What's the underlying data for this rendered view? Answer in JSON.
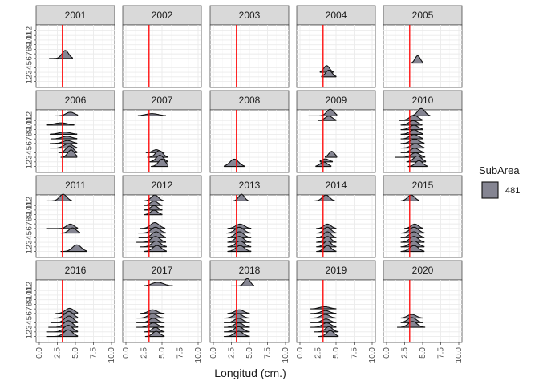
{
  "chart_data": {
    "type": "ridgeline",
    "xlabel": "Longitud (cm.)",
    "xlim": [
      0,
      10
    ],
    "x_ticks": [
      "0.0",
      "2.5",
      "5.0",
      "7.5",
      "10.0"
    ],
    "y_ticks": [
      "1",
      "2",
      "3",
      "4",
      "5",
      "6",
      "7",
      "8",
      "9",
      "10",
      "11",
      "12"
    ],
    "reference_line_x": 3.2,
    "reference_line_color": "#ff0000",
    "fill_color": "#858592",
    "legend": {
      "title": "SubArea",
      "items": [
        {
          "label": "481",
          "color": "#858592"
        }
      ]
    },
    "panels": [
      {
        "year": "2001",
        "ridges": [
          {
            "month": 6,
            "center": 3.6,
            "spread": 0.45,
            "min": 1.4,
            "max": 4.6,
            "height": 1.1
          }
        ]
      },
      {
        "year": "2002",
        "ridges": []
      },
      {
        "year": "2003",
        "ridges": []
      },
      {
        "year": "2004",
        "ridges": [
          {
            "month": 2,
            "center": 4.0,
            "spread": 0.45,
            "min": 3.0,
            "max": 5.0,
            "height": 0.9
          },
          {
            "month": 3,
            "center": 3.7,
            "spread": 0.4,
            "min": 2.8,
            "max": 4.6,
            "height": 0.9
          }
        ]
      },
      {
        "year": "2005",
        "ridges": [
          {
            "month": 5,
            "center": 4.3,
            "spread": 0.35,
            "min": 3.5,
            "max": 5.0,
            "height": 1.0
          }
        ]
      },
      {
        "year": "2006",
        "ridges": [
          {
            "month": 3,
            "center": 4.4,
            "spread": 0.45,
            "min": 3.0,
            "max": 5.2,
            "height": 1.0
          },
          {
            "month": 4,
            "center": 4.2,
            "spread": 0.5,
            "min": 2.7,
            "max": 5.2,
            "height": 0.9
          },
          {
            "month": 5,
            "center": 4.0,
            "spread": 0.6,
            "min": 1.5,
            "max": 5.2,
            "height": 0.6
          },
          {
            "month": 6,
            "center": 3.9,
            "spread": 0.65,
            "min": 1.5,
            "max": 5.2,
            "height": 0.4
          },
          {
            "month": 7,
            "center": 3.8,
            "spread": 0.7,
            "min": 1.6,
            "max": 5.2,
            "height": 0.35
          },
          {
            "month": 8,
            "center": 3.5,
            "spread": 0.8,
            "min": 1.5,
            "max": 5.2,
            "height": 0.3
          },
          {
            "month": 10,
            "center": 3.0,
            "spread": 0.9,
            "min": 1.0,
            "max": 4.8,
            "height": 0.3
          },
          {
            "month": 12,
            "center": 4.3,
            "spread": 0.6,
            "min": 2.2,
            "max": 5.3,
            "height": 0.5
          }
        ]
      },
      {
        "year": "2007",
        "ridges": [
          {
            "month": 1,
            "center": 5.0,
            "spread": 0.5,
            "min": 3.5,
            "max": 5.8,
            "height": 1.0
          },
          {
            "month": 2,
            "center": 4.7,
            "spread": 0.5,
            "min": 3.3,
            "max": 5.8,
            "height": 0.9
          },
          {
            "month": 3,
            "center": 4.6,
            "spread": 0.5,
            "min": 3.0,
            "max": 5.8,
            "height": 0.9
          },
          {
            "month": 4,
            "center": 4.2,
            "spread": 0.5,
            "min": 2.8,
            "max": 5.3,
            "height": 0.4
          },
          {
            "month": 12,
            "center": 3.6,
            "spread": 0.9,
            "min": 1.7,
            "max": 5.5,
            "height": 0.3
          }
        ]
      },
      {
        "year": "2008",
        "ridges": [
          {
            "month": 1,
            "center": 2.9,
            "spread": 0.6,
            "min": 1.5,
            "max": 4.3,
            "height": 1.0
          }
        ]
      },
      {
        "year": "2009",
        "ridges": [
          {
            "month": 1,
            "center": 3.3,
            "spread": 0.5,
            "min": 2.2,
            "max": 4.3,
            "height": 0.6
          },
          {
            "month": 2,
            "center": 3.5,
            "spread": 0.5,
            "min": 2.8,
            "max": 4.5,
            "height": 0.4
          },
          {
            "month": 3,
            "center": 4.4,
            "spread": 0.4,
            "min": 3.5,
            "max": 5.1,
            "height": 0.8
          },
          {
            "month": 11,
            "center": 4.0,
            "spread": 0.5,
            "min": 2.5,
            "max": 5.0,
            "height": 0.6
          },
          {
            "month": 12,
            "center": 4.2,
            "spread": 0.5,
            "min": 1.2,
            "max": 5.1,
            "height": 0.9
          }
        ]
      },
      {
        "year": "2010",
        "ridges": [
          {
            "month": 1,
            "center": 4.5,
            "spread": 0.5,
            "min": 3.0,
            "max": 5.6,
            "height": 0.8
          },
          {
            "month": 2,
            "center": 4.3,
            "spread": 0.55,
            "min": 2.8,
            "max": 5.4,
            "height": 0.8
          },
          {
            "month": 3,
            "center": 4.0,
            "spread": 0.6,
            "min": 1.2,
            "max": 5.3,
            "height": 0.6
          },
          {
            "month": 4,
            "center": 3.9,
            "spread": 0.6,
            "min": 2.0,
            "max": 5.2,
            "height": 0.6
          },
          {
            "month": 5,
            "center": 4.0,
            "spread": 0.6,
            "min": 2.0,
            "max": 5.2,
            "height": 0.6
          },
          {
            "month": 6,
            "center": 3.9,
            "spread": 0.6,
            "min": 2.0,
            "max": 5.2,
            "height": 0.6
          },
          {
            "month": 7,
            "center": 3.8,
            "spread": 0.6,
            "min": 2.0,
            "max": 5.0,
            "height": 0.6
          },
          {
            "month": 8,
            "center": 3.8,
            "spread": 0.6,
            "min": 2.0,
            "max": 5.0,
            "height": 0.6
          },
          {
            "month": 9,
            "center": 3.8,
            "spread": 0.6,
            "min": 2.0,
            "max": 5.0,
            "height": 0.6
          },
          {
            "month": 10,
            "center": 3.7,
            "spread": 0.6,
            "min": 2.0,
            "max": 4.9,
            "height": 0.6
          },
          {
            "month": 11,
            "center": 3.8,
            "spread": 0.6,
            "min": 1.8,
            "max": 4.9,
            "height": 0.7
          },
          {
            "month": 12,
            "center": 4.8,
            "spread": 0.5,
            "min": 3.4,
            "max": 6.0,
            "height": 1.0
          }
        ]
      },
      {
        "year": "2011",
        "ridges": [
          {
            "month": 1,
            "center": 5.2,
            "spread": 0.6,
            "min": 3.0,
            "max": 6.6,
            "height": 0.9
          },
          {
            "month": 5,
            "center": 4.6,
            "spread": 0.5,
            "min": 3.0,
            "max": 5.6,
            "height": 0.7
          },
          {
            "month": 6,
            "center": 4.3,
            "spread": 0.5,
            "min": 1.0,
            "max": 5.3,
            "height": 0.6
          },
          {
            "month": 12,
            "center": 3.3,
            "spread": 0.5,
            "min": 1.0,
            "max": 4.5,
            "height": 0.9
          }
        ]
      },
      {
        "year": "2012",
        "ridges": [
          {
            "month": 1,
            "center": 4.3,
            "spread": 0.6,
            "min": 2.5,
            "max": 5.6,
            "height": 0.8
          },
          {
            "month": 2,
            "center": 4.2,
            "spread": 0.6,
            "min": 2.0,
            "max": 5.6,
            "height": 0.8
          },
          {
            "month": 3,
            "center": 4.1,
            "spread": 0.6,
            "min": 1.5,
            "max": 5.5,
            "height": 0.8
          },
          {
            "month": 4,
            "center": 4.2,
            "spread": 0.6,
            "min": 1.8,
            "max": 5.5,
            "height": 0.8
          },
          {
            "month": 5,
            "center": 4.1,
            "spread": 0.6,
            "min": 1.7,
            "max": 5.5,
            "height": 0.8
          },
          {
            "month": 6,
            "center": 4.0,
            "spread": 0.6,
            "min": 2.0,
            "max": 5.4,
            "height": 0.8
          },
          {
            "month": 9,
            "center": 3.9,
            "spread": 0.5,
            "min": 2.5,
            "max": 5.0,
            "height": 0.6
          },
          {
            "month": 10,
            "center": 3.9,
            "spread": 0.5,
            "min": 2.5,
            "max": 5.0,
            "height": 0.6
          },
          {
            "month": 11,
            "center": 3.9,
            "spread": 0.5,
            "min": 2.5,
            "max": 5.0,
            "height": 0.6
          },
          {
            "month": 12,
            "center": 4.0,
            "spread": 0.5,
            "min": 2.5,
            "max": 5.2,
            "height": 0.8
          }
        ]
      },
      {
        "year": "2013",
        "ridges": [
          {
            "month": 1,
            "center": 3.7,
            "spread": 0.6,
            "min": 2.0,
            "max": 5.2,
            "height": 0.8
          },
          {
            "month": 2,
            "center": 3.7,
            "spread": 0.6,
            "min": 2.0,
            "max": 5.2,
            "height": 0.8
          },
          {
            "month": 3,
            "center": 3.6,
            "spread": 0.6,
            "min": 2.0,
            "max": 5.2,
            "height": 0.8
          },
          {
            "month": 4,
            "center": 3.6,
            "spread": 0.6,
            "min": 2.0,
            "max": 5.2,
            "height": 0.8
          },
          {
            "month": 5,
            "center": 3.6,
            "spread": 0.6,
            "min": 1.8,
            "max": 5.2,
            "height": 0.8
          },
          {
            "month": 6,
            "center": 3.7,
            "spread": 0.6,
            "min": 2.0,
            "max": 5.2,
            "height": 0.6
          },
          {
            "month": 12,
            "center": 3.9,
            "spread": 0.4,
            "min": 2.8,
            "max": 4.8,
            "height": 0.9
          }
        ]
      },
      {
        "year": "2014",
        "ridges": [
          {
            "month": 1,
            "center": 3.8,
            "spread": 0.5,
            "min": 2.3,
            "max": 5.0,
            "height": 0.8
          },
          {
            "month": 2,
            "center": 3.8,
            "spread": 0.5,
            "min": 2.3,
            "max": 5.0,
            "height": 0.8
          },
          {
            "month": 3,
            "center": 3.8,
            "spread": 0.5,
            "min": 2.3,
            "max": 5.0,
            "height": 0.8
          },
          {
            "month": 4,
            "center": 3.8,
            "spread": 0.5,
            "min": 2.3,
            "max": 5.0,
            "height": 0.8
          },
          {
            "month": 5,
            "center": 3.8,
            "spread": 0.5,
            "min": 2.3,
            "max": 5.0,
            "height": 0.8
          },
          {
            "month": 6,
            "center": 3.8,
            "spread": 0.5,
            "min": 2.3,
            "max": 5.0,
            "height": 0.6
          },
          {
            "month": 12,
            "center": 3.6,
            "spread": 0.5,
            "min": 2.0,
            "max": 4.8,
            "height": 0.8
          }
        ]
      },
      {
        "year": "2015",
        "ridges": [
          {
            "month": 1,
            "center": 3.8,
            "spread": 0.6,
            "min": 2.0,
            "max": 5.2,
            "height": 0.8
          },
          {
            "month": 2,
            "center": 3.8,
            "spread": 0.6,
            "min": 2.0,
            "max": 5.2,
            "height": 0.8
          },
          {
            "month": 3,
            "center": 3.8,
            "spread": 0.6,
            "min": 2.0,
            "max": 5.2,
            "height": 0.8
          },
          {
            "month": 4,
            "center": 3.8,
            "spread": 0.6,
            "min": 2.0,
            "max": 5.2,
            "height": 0.8
          },
          {
            "month": 5,
            "center": 3.8,
            "spread": 0.6,
            "min": 2.0,
            "max": 5.2,
            "height": 0.8
          },
          {
            "month": 6,
            "center": 3.9,
            "spread": 0.5,
            "min": 2.5,
            "max": 5.0,
            "height": 0.6
          },
          {
            "month": 12,
            "center": 3.4,
            "spread": 0.5,
            "min": 2.0,
            "max": 4.5,
            "height": 0.8
          }
        ]
      },
      {
        "year": "2016",
        "ridges": [
          {
            "month": 1,
            "center": 4.0,
            "spread": 0.6,
            "min": 1.0,
            "max": 5.3,
            "height": 0.9
          },
          {
            "month": 2,
            "center": 4.0,
            "spread": 0.6,
            "min": 1.0,
            "max": 5.3,
            "height": 0.9
          },
          {
            "month": 3,
            "center": 4.0,
            "spread": 0.6,
            "min": 1.3,
            "max": 5.3,
            "height": 0.9
          },
          {
            "month": 4,
            "center": 4.1,
            "spread": 0.6,
            "min": 1.6,
            "max": 5.3,
            "height": 0.9
          },
          {
            "month": 5,
            "center": 4.1,
            "spread": 0.6,
            "min": 2.0,
            "max": 5.3,
            "height": 0.9
          },
          {
            "month": 6,
            "center": 4.2,
            "spread": 0.6,
            "min": 2.3,
            "max": 5.3,
            "height": 0.7
          }
        ]
      },
      {
        "year": "2017",
        "ridges": [
          {
            "month": 1,
            "center": 4.2,
            "spread": 0.5,
            "min": 2.7,
            "max": 5.3,
            "height": 0.7
          },
          {
            "month": 2,
            "center": 4.1,
            "spread": 0.5,
            "min": 2.5,
            "max": 5.3,
            "height": 0.6
          },
          {
            "month": 3,
            "center": 3.8,
            "spread": 0.6,
            "min": 1.5,
            "max": 5.3,
            "height": 0.6
          },
          {
            "month": 4,
            "center": 3.8,
            "spread": 0.6,
            "min": 1.5,
            "max": 5.3,
            "height": 0.6
          },
          {
            "month": 5,
            "center": 3.7,
            "spread": 0.6,
            "min": 1.5,
            "max": 5.3,
            "height": 0.6
          },
          {
            "month": 6,
            "center": 3.7,
            "spread": 0.6,
            "min": 2.0,
            "max": 5.3,
            "height": 0.5
          },
          {
            "month": 12,
            "center": 4.4,
            "spread": 0.8,
            "min": 2.5,
            "max": 6.5,
            "height": 0.5
          }
        ]
      },
      {
        "year": "2018",
        "ridges": [
          {
            "month": 1,
            "center": 3.5,
            "spread": 0.6,
            "min": 1.5,
            "max": 5.0,
            "height": 0.7
          },
          {
            "month": 2,
            "center": 3.5,
            "spread": 0.6,
            "min": 1.5,
            "max": 5.0,
            "height": 0.7
          },
          {
            "month": 3,
            "center": 3.5,
            "spread": 0.6,
            "min": 1.5,
            "max": 5.0,
            "height": 0.6
          },
          {
            "month": 4,
            "center": 3.5,
            "spread": 0.6,
            "min": 1.5,
            "max": 5.0,
            "height": 0.6
          },
          {
            "month": 5,
            "center": 3.4,
            "spread": 0.6,
            "min": 1.5,
            "max": 5.0,
            "height": 0.6
          },
          {
            "month": 6,
            "center": 3.6,
            "spread": 0.6,
            "min": 2.0,
            "max": 5.0,
            "height": 0.5
          },
          {
            "month": 12,
            "center": 4.7,
            "spread": 0.4,
            "min": 2.5,
            "max": 5.6,
            "height": 1.0
          }
        ]
      },
      {
        "year": "2019",
        "ridges": [
          {
            "month": 1,
            "center": 4.2,
            "spread": 0.5,
            "min": 2.5,
            "max": 5.3,
            "height": 0.8
          },
          {
            "month": 2,
            "center": 4.0,
            "spread": 0.5,
            "min": 2.0,
            "max": 5.3,
            "height": 0.7
          },
          {
            "month": 3,
            "center": 3.7,
            "spread": 0.6,
            "min": 1.5,
            "max": 5.0,
            "height": 0.6
          },
          {
            "month": 4,
            "center": 3.6,
            "spread": 0.6,
            "min": 1.5,
            "max": 5.0,
            "height": 0.5
          },
          {
            "month": 5,
            "center": 3.5,
            "spread": 0.6,
            "min": 1.5,
            "max": 5.0,
            "height": 0.5
          },
          {
            "month": 6,
            "center": 3.5,
            "spread": 0.6,
            "min": 1.5,
            "max": 5.0,
            "height": 0.4
          },
          {
            "month": 7,
            "center": 3.4,
            "spread": 0.7,
            "min": 1.5,
            "max": 5.0,
            "height": 0.3
          }
        ]
      },
      {
        "year": "2020",
        "ridges": [
          {
            "month": 3,
            "center": 3.6,
            "spread": 0.6,
            "min": 1.5,
            "max": 5.3,
            "height": 0.8
          },
          {
            "month": 4,
            "center": 3.5,
            "spread": 0.6,
            "min": 2.0,
            "max": 5.0,
            "height": 0.7
          },
          {
            "month": 5,
            "center": 3.5,
            "spread": 0.6,
            "min": 2.0,
            "max": 5.0,
            "height": 0.5
          }
        ]
      }
    ]
  }
}
